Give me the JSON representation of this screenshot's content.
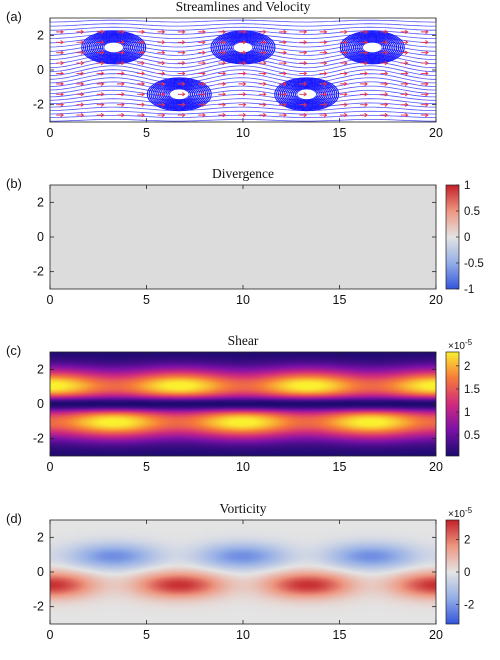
{
  "chart_data": [
    {
      "panel": "(a)",
      "type": "streamlines",
      "title": "Streamlines and Velocity",
      "xlim": [
        0,
        20
      ],
      "ylim": [
        -3,
        3
      ],
      "xticks": [
        0,
        5,
        10,
        15,
        20
      ],
      "yticks": [
        -2,
        0,
        2
      ],
      "streamline_color": "#1a1aff",
      "arrow_color": "#e8304a",
      "vortex_centers": [
        {
          "x": 3.3,
          "y": 1.3
        },
        {
          "x": 10.0,
          "y": 1.3
        },
        {
          "x": 16.7,
          "y": 1.3
        },
        {
          "x": 6.7,
          "y": -1.4
        },
        {
          "x": 13.3,
          "y": -1.4
        }
      ]
    },
    {
      "panel": "(b)",
      "type": "heatmap",
      "title": "Divergence",
      "xlim": [
        0,
        20
      ],
      "ylim": [
        -3,
        3
      ],
      "xticks": [
        0,
        5,
        10,
        15,
        20
      ],
      "yticks": [
        -2,
        0,
        2
      ],
      "field_value": 0,
      "colorbar": {
        "min": -1,
        "max": 1,
        "ticks": [
          -1,
          -0.5,
          0,
          0.5,
          1
        ],
        "exponent": "",
        "colormap": "blue-white-red"
      }
    },
    {
      "panel": "(c)",
      "type": "heatmap",
      "title": "Shear",
      "xlim": [
        0,
        20
      ],
      "ylim": [
        -3,
        3
      ],
      "xticks": [
        0,
        5,
        10,
        15,
        20
      ],
      "yticks": [
        -2,
        0,
        2
      ],
      "colorbar": {
        "min": 0.05,
        "max": 2.3,
        "ticks": [
          0.5,
          1,
          1.5,
          2
        ],
        "exponent": "×10",
        "exponent_power": "-5",
        "colormap": "plasma"
      }
    },
    {
      "panel": "(d)",
      "type": "heatmap",
      "title": "Vorticity",
      "xlim": [
        0,
        20
      ],
      "ylim": [
        -3,
        3
      ],
      "xticks": [
        0,
        5,
        10,
        15,
        20
      ],
      "yticks": [
        -2,
        0,
        2
      ],
      "colorbar": {
        "min": -3.2,
        "max": 3.2,
        "ticks": [
          -2,
          0,
          2
        ],
        "exponent": "×10",
        "exponent_power": "-5",
        "colormap": "blue-white-red"
      }
    }
  ]
}
